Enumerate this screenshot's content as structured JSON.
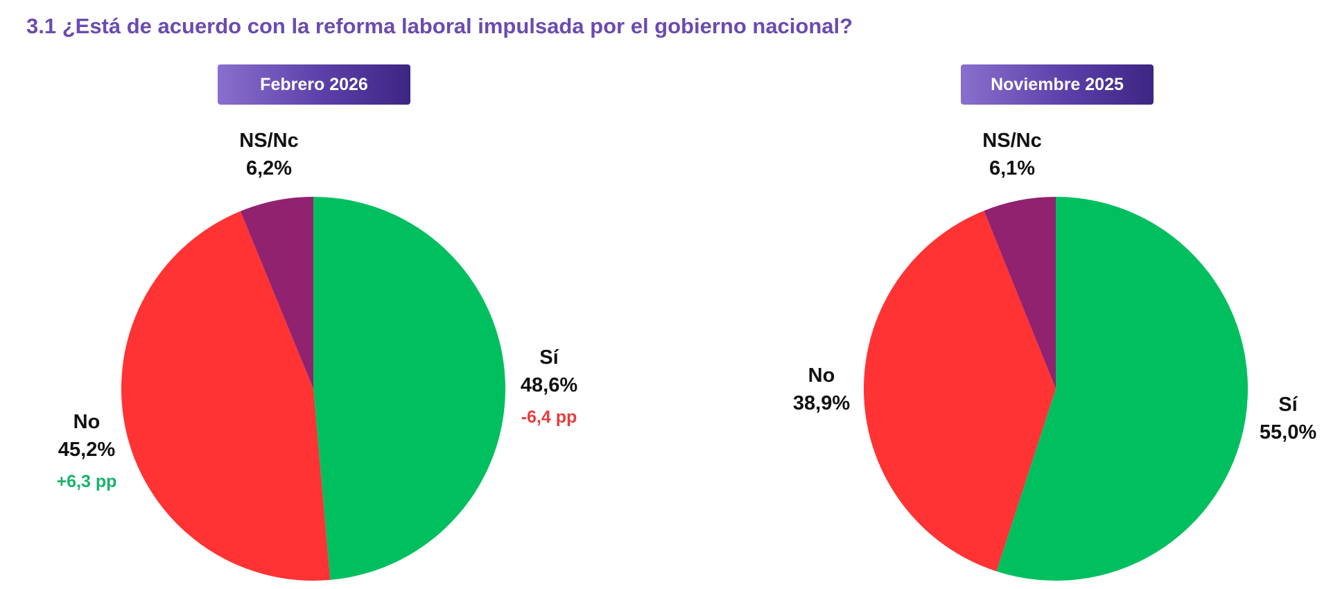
{
  "title": "3.1 ¿Está de acuerdo con la reforma laboral impulsada por el gobierno nacional?",
  "colors": {
    "si": "#00bf5f",
    "no": "#ff3333",
    "nsnc": "#912270",
    "up": "#17b26a",
    "down": "#e53e3e"
  },
  "chart_data": [
    {
      "type": "pie",
      "title": "Febrero 2026",
      "slices": [
        {
          "key": "si",
          "name": "Sí",
          "value": 48.6,
          "pct_label": "48,6%",
          "delta_label": "-6,4 pp",
          "delta_dir": "down"
        },
        {
          "key": "no",
          "name": "No",
          "value": 45.2,
          "pct_label": "45,2%",
          "delta_label": "+6,3 pp",
          "delta_dir": "up"
        },
        {
          "key": "nsnc",
          "name": "NS/Nc",
          "value": 6.2,
          "pct_label": "6,2%",
          "delta_label": "",
          "delta_dir": ""
        }
      ]
    },
    {
      "type": "pie",
      "title": "Noviembre 2025",
      "slices": [
        {
          "key": "si",
          "name": "Sí",
          "value": 55.0,
          "pct_label": "55,0%",
          "delta_label": "",
          "delta_dir": ""
        },
        {
          "key": "no",
          "name": "No",
          "value": 38.9,
          "pct_label": "38,9%",
          "delta_label": "",
          "delta_dir": ""
        },
        {
          "key": "nsnc",
          "name": "NS/Nc",
          "value": 6.1,
          "pct_label": "6,1%",
          "delta_label": "",
          "delta_dir": ""
        }
      ]
    }
  ]
}
